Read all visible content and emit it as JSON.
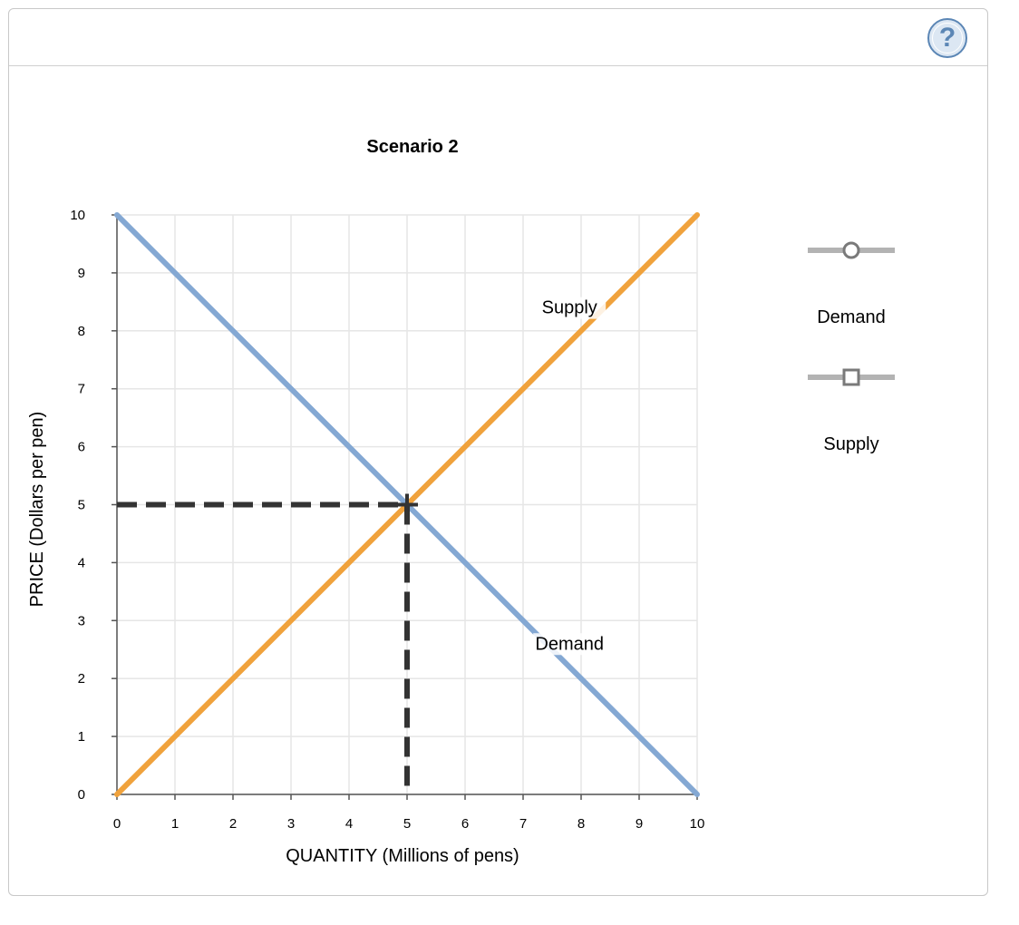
{
  "help": {
    "label": "?"
  },
  "chart_data": {
    "type": "line",
    "title": "Scenario 2",
    "xlabel": "QUANTITY (Millions of pens)",
    "ylabel": "PRICE (Dollars per pen)",
    "xlim": [
      0,
      10
    ],
    "ylim": [
      0,
      10
    ],
    "x_ticks": [
      0,
      1,
      2,
      3,
      4,
      5,
      6,
      7,
      8,
      9,
      10
    ],
    "y_ticks": [
      0,
      1,
      2,
      3,
      4,
      5,
      6,
      7,
      8,
      9,
      10
    ],
    "grid": true,
    "legend_position": "right",
    "series": [
      {
        "name": "Demand",
        "color": "#84a8d3",
        "marker": "circle",
        "x": [
          0,
          10
        ],
        "y": [
          10,
          0
        ],
        "label": {
          "text": "Demand",
          "x": 7.8,
          "y": 2.5
        }
      },
      {
        "name": "Supply",
        "color": "#f0a23c",
        "marker": "square",
        "x": [
          0,
          10
        ],
        "y": [
          0,
          10
        ],
        "label": {
          "text": "Supply",
          "x": 7.8,
          "y": 8.3
        }
      }
    ],
    "equilibrium": {
      "x": 5,
      "y": 5,
      "color": "#333333",
      "style": "dashed"
    }
  },
  "legend": {
    "items": [
      {
        "label": "Demand",
        "marker": "circle"
      },
      {
        "label": "Supply",
        "marker": "square"
      }
    ]
  }
}
